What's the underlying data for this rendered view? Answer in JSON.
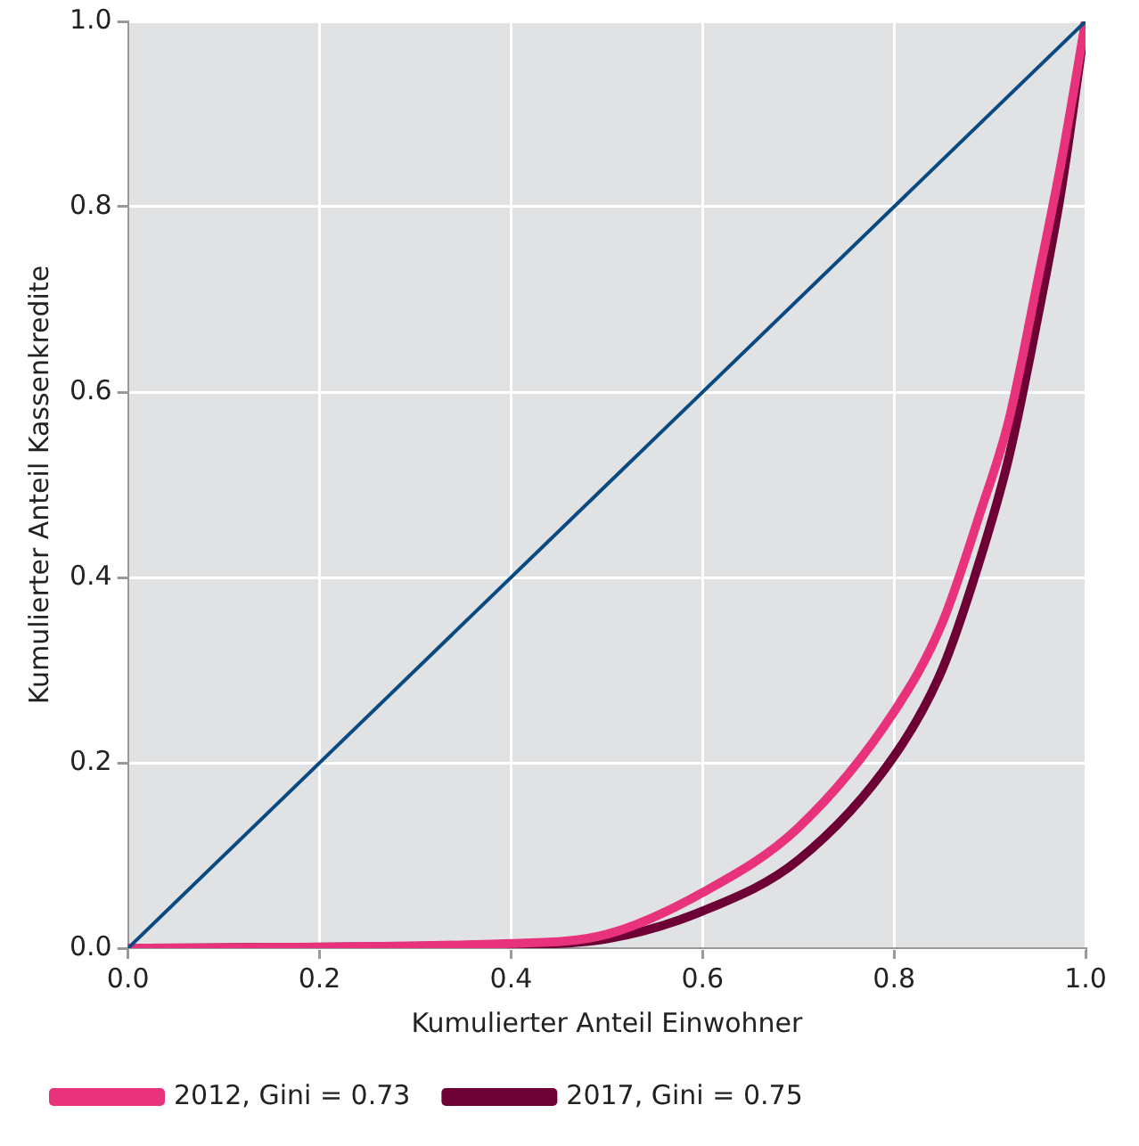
{
  "chart_data": {
    "type": "line",
    "xlabel": "Kumulierter Anteil Einwohner",
    "ylabel": "Kumulierter Anteil Kassenkredite",
    "xlim": [
      0,
      1
    ],
    "ylim": [
      0,
      1
    ],
    "xticks": [
      {
        "value": 0,
        "label": "0.0"
      },
      {
        "value": 0.2,
        "label": "0.2"
      },
      {
        "value": 0.4,
        "label": "0.4"
      },
      {
        "value": 0.6,
        "label": "0.6"
      },
      {
        "value": 0.8,
        "label": "0.8"
      },
      {
        "value": 1,
        "label": "1.0"
      }
    ],
    "yticks": [
      {
        "value": 0,
        "label": "0.0"
      },
      {
        "value": 0.2,
        "label": "0.2"
      },
      {
        "value": 0.4,
        "label": "0.4"
      },
      {
        "value": 0.6,
        "label": "0.6"
      },
      {
        "value": 0.8,
        "label": "0.8"
      },
      {
        "value": 1,
        "label": "1.0"
      }
    ],
    "grid": true,
    "legend": "bottom",
    "marker": "none",
    "line_style": "solid",
    "series": [
      {
        "color": "#0b4a80",
        "x": [
          0,
          1
        ],
        "values": [
          0,
          1
        ]
      },
      {
        "name": "2012, Gini = 0.73",
        "color": "#e8327c",
        "x": [
          0,
          0.4,
          0.5,
          0.6,
          0.7,
          0.8,
          0.85,
          0.89,
          0.92,
          0.95,
          0.975,
          1
        ],
        "values": [
          0,
          0.005,
          0.015,
          0.06,
          0.13,
          0.255,
          0.35,
          0.47,
          0.57,
          0.72,
          0.85,
          1
        ]
      },
      {
        "name": "2017, Gini = 0.75",
        "color": "#6d0035",
        "x": [
          0,
          0.4,
          0.5,
          0.6,
          0.7,
          0.8,
          0.85,
          0.89,
          0.92,
          0.95,
          0.975,
          1
        ],
        "values": [
          0,
          0.004,
          0.01,
          0.04,
          0.095,
          0.207,
          0.3,
          0.42,
          0.53,
          0.68,
          0.82,
          1
        ]
      }
    ]
  }
}
